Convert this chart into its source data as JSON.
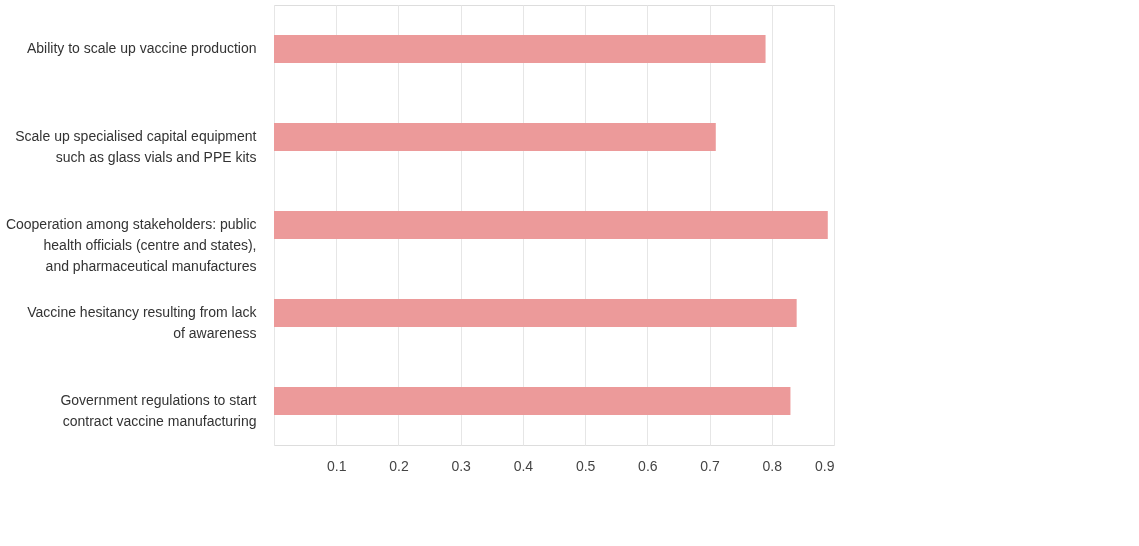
{
  "chart_data": {
    "type": "bar",
    "orientation": "horizontal",
    "categories": [
      "Ability to scale up vaccine production",
      "Scale up specialised capital equipment such as glass vials and PPE kits",
      "Cooperation among stakeholders: public health officials (centre and states), and pharmaceutical manufactures",
      "Vaccine hesitancy resulting from lack of awareness",
      "Government regulations to start contract vaccine manufacturing"
    ],
    "values": [
      0.79,
      0.71,
      0.89,
      0.84,
      0.83
    ],
    "color": "#ec9a9a",
    "xlim": [
      0,
      0.9
    ],
    "xticks": [
      0.1,
      0.2,
      0.3,
      0.4,
      0.5,
      0.6,
      0.7,
      0.8,
      0.9
    ],
    "grid": "x"
  }
}
